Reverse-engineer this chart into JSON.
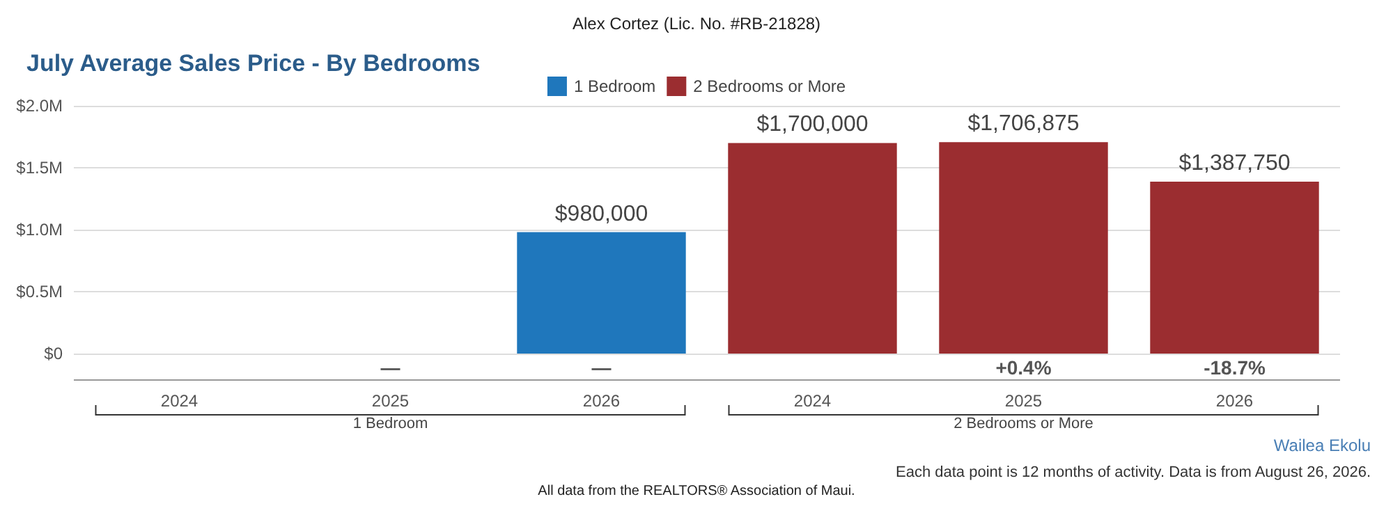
{
  "chart_data": {
    "type": "bar",
    "title": "July Average Sales Price - By Bedrooms",
    "categories": [
      "2024",
      "2025",
      "2026",
      "2024",
      "2025",
      "2026"
    ],
    "series": [
      {
        "name": "1 Bedroom",
        "color": "#1f77bc",
        "values": [
          null,
          null,
          980000,
          null,
          null,
          null
        ],
        "value_labels": [
          null,
          null,
          "$980,000",
          null,
          null,
          null
        ]
      },
      {
        "name": "2 Bedrooms or More",
        "color": "#9b2d30",
        "values": [
          null,
          null,
          null,
          1700000,
          1706875,
          1387750
        ],
        "value_labels": [
          null,
          null,
          null,
          "$1,700,000",
          "$1,706,875",
          "$1,387,750"
        ]
      }
    ],
    "ylim": [
      0,
      2000000
    ],
    "yticks": [
      {
        "value": 0,
        "label": "$0"
      },
      {
        "value": 500000,
        "label": "$0.5M"
      },
      {
        "value": 1000000,
        "label": "$1.0M"
      },
      {
        "value": 1500000,
        "label": "$1.5M"
      },
      {
        "value": 2000000,
        "label": "$2.0M"
      }
    ],
    "grid": "y",
    "legend": "top",
    "annotations": [
      "Alex Cortez (Lic. No. #RB-21828)",
      "—",
      "—",
      "+0.4%",
      "-18.7%",
      "1 Bedroom",
      "2 Bedrooms or More",
      "Wailea Ekolu",
      "Each data point is 12 months of activity. Data is from August 26, 2026.",
      "All data from the REALTORS® Association of Maui."
    ]
  }
}
